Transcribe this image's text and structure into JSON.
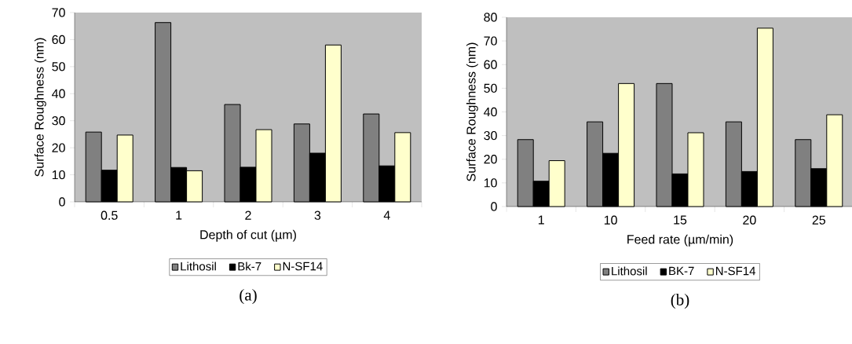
{
  "chart_data": [
    {
      "type": "bar",
      "xlabel": "Depth of cut (µm)",
      "ylabel": "Surface Roughness (nm)",
      "categories": [
        "0.5",
        "1",
        "2",
        "3",
        "4"
      ],
      "ylim": [
        0,
        70
      ],
      "yticks": [
        0,
        10,
        20,
        30,
        40,
        50,
        60,
        70
      ],
      "legend": "bottom",
      "annotations": [
        "(a)"
      ],
      "series": [
        {
          "name": "Lithosil",
          "color": "#808080",
          "values": [
            25.8,
            66.3,
            36,
            28.8,
            32.5
          ]
        },
        {
          "name": "Bk-7",
          "color": "#000000",
          "values": [
            11.7,
            12.7,
            12.8,
            18,
            13.3
          ]
        },
        {
          "name": "N-SF14",
          "color": "#ffffcc",
          "values": [
            24.7,
            11.5,
            26.7,
            58,
            25.6
          ]
        }
      ]
    },
    {
      "type": "bar",
      "xlabel": "Feed rate (µm/min)",
      "ylabel": "Surface Roughness (nm)",
      "categories": [
        "1",
        "10",
        "15",
        "20",
        "25"
      ],
      "ylim": [
        0,
        80
      ],
      "yticks": [
        0,
        10,
        20,
        30,
        40,
        50,
        60,
        70,
        80
      ],
      "legend": "bottom",
      "annotations": [
        "(b)"
      ],
      "series": [
        {
          "name": "Lithosil",
          "color": "#808080",
          "values": [
            28.3,
            35.8,
            52,
            35.8,
            28.3
          ]
        },
        {
          "name": "BK-7",
          "color": "#000000",
          "values": [
            10.7,
            22.5,
            13.8,
            14.8,
            16
          ]
        },
        {
          "name": "N-SF14",
          "color": "#ffffcc",
          "values": [
            19.4,
            52,
            31.2,
            75.4,
            38.8
          ]
        }
      ]
    }
  ]
}
